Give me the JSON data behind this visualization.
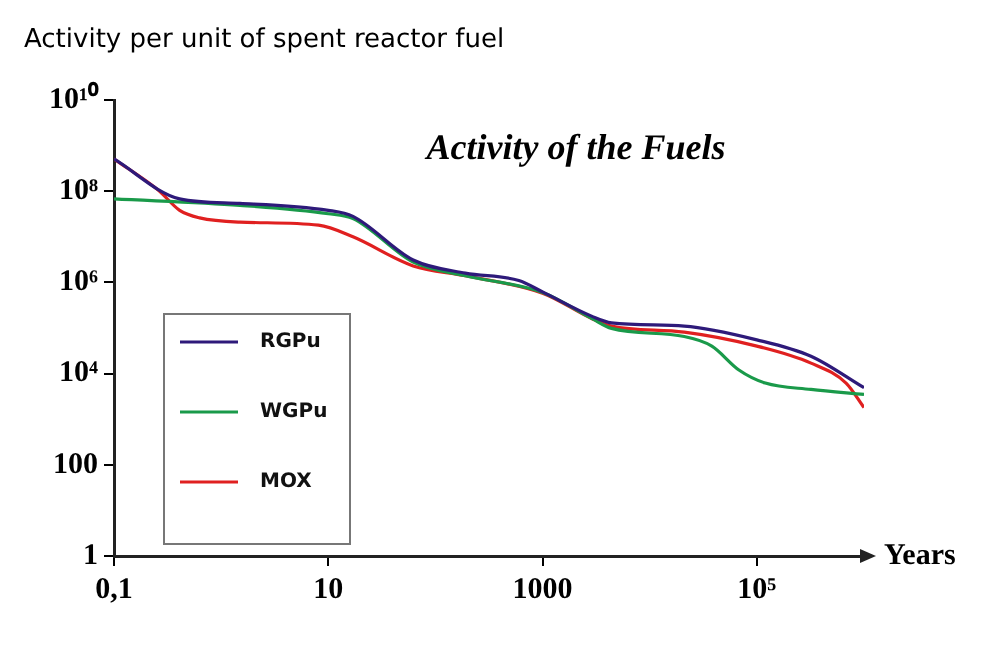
{
  "chart_data": {
    "type": "line",
    "title": "Activity of the Fuels",
    "xlabel": "Years",
    "ylabel": "Activity per unit of spent reactor fuel",
    "log": "xy",
    "grid": false,
    "legend": "left",
    "marker": "none",
    "line_style": "solid",
    "xlim": [
      0.1,
      1000000
    ],
    "xticks": [
      {
        "value": 0.1,
        "label": "0,1"
      },
      10,
      1000,
      {
        "value": 100000,
        "label": "10⁵"
      }
    ],
    "ylim": [
      1,
      10000000000
    ],
    "yticks": [
      1,
      100,
      {
        "value": 10000,
        "label": "10⁴"
      },
      {
        "value": 1000000,
        "label": "10⁶"
      },
      {
        "value": 100000000,
        "label": "10⁸"
      },
      {
        "value": 10000000000,
        "label": "10¹⁰"
      }
    ],
    "series": [
      {
        "name": "RGPu",
        "color": "#2e1a7a",
        "x": [
          0.1,
          0.41,
          1.5,
          10,
          17,
          62,
          190,
          600,
          1000,
          2900,
          4400,
          21000,
          100000,
          320000,
          1000000
        ],
        "values": [
          510000000,
          68000000,
          54000000,
          38000000,
          28000000,
          3100000,
          1600000,
          1100000,
          620000,
          180000,
          130000,
          110000,
          55000,
          24000,
          4900
        ]
      },
      {
        "name": "WGPu",
        "color": "#1a9a4a",
        "x": [
          0.1,
          1.5,
          10,
          17,
          62,
          190,
          1000,
          2900,
          4400,
          21000,
          38000,
          68000,
          120000,
          320000,
          1000000
        ],
        "values": [
          68000000,
          49000000,
          32000000,
          25000000,
          2800000,
          1400000,
          600000,
          160000,
          98000,
          65000,
          40000,
          12000,
          6200,
          4500,
          3500
        ]
      },
      {
        "name": "MOX",
        "color": "#e02020",
        "x": [
          0.1,
          0.26,
          0.41,
          0.63,
          1.5,
          8.1,
          17,
          62,
          190,
          1000,
          2900,
          4400,
          21000,
          100000,
          320000,
          680000,
          1000000
        ],
        "values": [
          510000000,
          105000000,
          38000000,
          26000000,
          21000000,
          18000000,
          10000000,
          2300000,
          1400000,
          580000,
          160000,
          110000,
          81000,
          40000,
          17000,
          6200,
          1800
        ]
      }
    ]
  }
}
